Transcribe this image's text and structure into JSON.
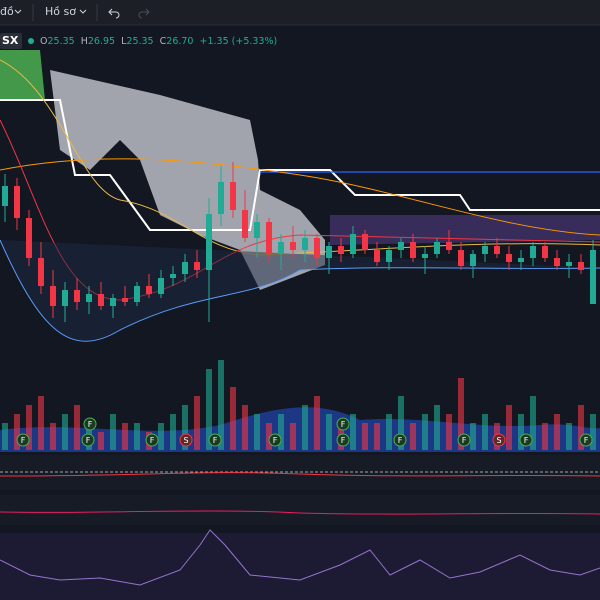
{
  "toolbar": {
    "chart_menu": "đồ",
    "profile_menu": "Hồ sơ"
  },
  "legend": {
    "symbol": "SX",
    "open": {
      "label": "O",
      "value": "25.35"
    },
    "high": {
      "label": "H",
      "value": "26.95"
    },
    "low": {
      "label": "L",
      "value": "25.35"
    },
    "close": {
      "label": "C",
      "value": "26.70"
    },
    "change": "+1.35 (+5.33%)"
  },
  "candles": [
    [
      27.8,
      28.6,
      27.4,
      28.3
    ],
    [
      28.3,
      28.5,
      27.2,
      27.5
    ],
    [
      27.5,
      27.7,
      26.3,
      26.5
    ],
    [
      26.5,
      26.9,
      25.6,
      25.8
    ],
    [
      25.8,
      26.2,
      25.0,
      25.3
    ],
    [
      25.3,
      25.9,
      24.9,
      25.7
    ],
    [
      25.7,
      26.0,
      25.2,
      25.4
    ],
    [
      25.4,
      25.8,
      25.1,
      25.6
    ],
    [
      25.6,
      25.9,
      25.2,
      25.3
    ],
    [
      25.3,
      25.6,
      25.0,
      25.5
    ],
    [
      25.5,
      25.8,
      25.3,
      25.4
    ],
    [
      25.4,
      25.9,
      25.3,
      25.8
    ],
    [
      25.8,
      26.1,
      25.5,
      25.6
    ],
    [
      25.6,
      26.2,
      25.5,
      26.0
    ],
    [
      26.0,
      26.3,
      25.8,
      26.1
    ],
    [
      26.1,
      26.6,
      25.9,
      26.4
    ],
    [
      26.4,
      26.7,
      26.0,
      26.2
    ],
    [
      26.2,
      28.0,
      24.9,
      27.6
    ],
    [
      27.6,
      28.8,
      27.3,
      28.4
    ],
    [
      28.4,
      28.9,
      27.5,
      27.7
    ],
    [
      27.7,
      28.2,
      26.9,
      27.0
    ],
    [
      27.0,
      27.6,
      26.5,
      27.4
    ],
    [
      27.4,
      27.5,
      26.4,
      26.6
    ],
    [
      26.6,
      27.1,
      26.2,
      26.9
    ],
    [
      26.9,
      27.3,
      26.5,
      26.7
    ],
    [
      26.7,
      27.2,
      26.4,
      27.0
    ],
    [
      27.0,
      27.1,
      26.3,
      26.5
    ],
    [
      26.5,
      26.9,
      26.1,
      26.8
    ],
    [
      26.8,
      27.0,
      26.4,
      26.6
    ],
    [
      26.6,
      27.3,
      26.5,
      27.1
    ],
    [
      27.1,
      27.2,
      26.6,
      26.7
    ],
    [
      26.7,
      26.9,
      26.3,
      26.4
    ],
    [
      26.4,
      26.8,
      26.2,
      26.7
    ],
    [
      26.7,
      27.0,
      26.5,
      26.9
    ],
    [
      26.9,
      27.1,
      26.4,
      26.5
    ],
    [
      26.5,
      26.8,
      26.1,
      26.6
    ],
    [
      26.6,
      27.0,
      26.5,
      26.9
    ],
    [
      26.9,
      27.2,
      26.6,
      26.7
    ],
    [
      26.7,
      26.9,
      26.2,
      26.3
    ],
    [
      26.3,
      26.7,
      26.0,
      26.6
    ],
    [
      26.6,
      26.9,
      26.4,
      26.8
    ],
    [
      26.8,
      27.0,
      26.5,
      26.6
    ],
    [
      26.6,
      26.8,
      26.2,
      26.4
    ],
    [
      26.4,
      26.7,
      26.2,
      26.5
    ],
    [
      26.5,
      26.9,
      26.3,
      26.8
    ],
    [
      26.8,
      26.9,
      26.4,
      26.5
    ],
    [
      26.5,
      26.7,
      26.2,
      26.3
    ],
    [
      26.3,
      26.6,
      26.0,
      26.4
    ],
    [
      26.4,
      26.6,
      26.1,
      26.2
    ],
    [
      25.35,
      26.95,
      25.35,
      26.7
    ]
  ],
  "volumes": [
    3,
    4,
    5,
    6,
    3,
    4,
    5,
    3,
    2,
    4,
    3,
    3,
    2,
    3,
    4,
    5,
    6,
    9,
    10,
    7,
    5,
    4,
    3,
    4,
    3,
    5,
    6,
    4,
    3,
    4,
    3,
    3,
    4,
    6,
    3,
    4,
    5,
    4,
    8,
    3,
    4,
    3,
    5,
    4,
    6,
    3,
    4,
    3,
    5,
    4
  ],
  "markers": [
    "F",
    "F",
    "F",
    "S",
    "F",
    "F",
    "F",
    "F",
    "F",
    "S",
    "F",
    "F",
    "F",
    "F"
  ]
}
